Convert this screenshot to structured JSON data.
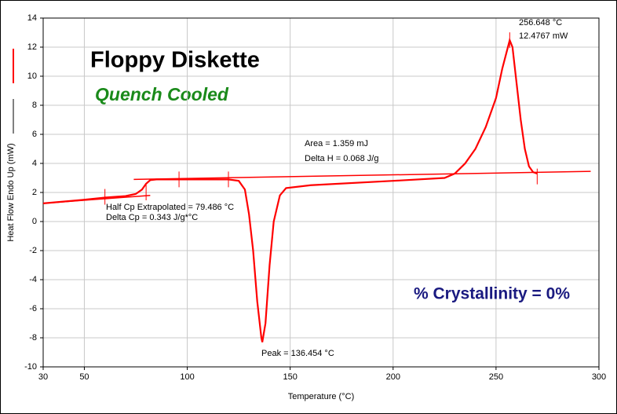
{
  "chart_data": {
    "type": "line",
    "title": "Floppy Diskette",
    "subtitle": "Quench Cooled",
    "xlabel": "Temperature (°C)",
    "ylabel": "Heat Flow Endo Up (mW)",
    "xlim": [
      30,
      300
    ],
    "ylim": [
      -10,
      14
    ],
    "xticks": [
      30,
      50,
      100,
      150,
      200,
      250,
      300
    ],
    "yticks": [
      -10,
      -8,
      -6,
      -4,
      -2,
      0,
      2,
      4,
      6,
      8,
      10,
      12,
      14
    ],
    "grid": true,
    "series": [
      {
        "color": "#ff0000",
        "x": [
          30,
          50,
          60,
          70,
          75,
          78,
          80,
          82,
          85,
          100,
          120,
          125,
          128,
          130,
          132,
          134,
          136,
          136.454,
          138,
          140,
          142,
          145,
          148,
          160,
          200,
          225,
          230,
          235,
          240,
          245,
          250,
          253,
          256.648,
          258,
          260,
          262,
          264,
          266,
          268,
          270
        ],
        "values": [
          1.25,
          1.5,
          1.65,
          1.75,
          1.9,
          2.2,
          2.6,
          2.85,
          2.9,
          2.9,
          2.9,
          2.8,
          2.2,
          0.5,
          -2,
          -5.5,
          -8.0,
          -8.3,
          -7,
          -3,
          0,
          1.8,
          2.3,
          2.5,
          2.8,
          3.0,
          3.3,
          4.0,
          5.0,
          6.5,
          8.5,
          10.5,
          12.4767,
          12.0,
          9.5,
          7,
          5,
          3.8,
          3.4,
          3.3
        ]
      },
      {
        "color": "#ff0000",
        "x": [
          74,
          296
        ],
        "values": [
          2.9,
          3.45
        ]
      },
      {
        "color": "#ff0000",
        "x": [
          30,
          82
        ],
        "values": [
          1.25,
          1.8
        ]
      }
    ],
    "markers": {
      "x": [
        60,
        80,
        96,
        120,
        256.648,
        270
      ],
      "values": [
        1.7,
        2.0,
        2.9,
        2.9,
        12.4767,
        3.1
      ]
    },
    "annotations": [
      "256.648 °C",
      "12.4767 mW",
      "Area = 1.359 mJ",
      "Delta H = 0.068 J/g",
      "Half Cp Extrapolated = 79.486 °C",
      "Delta Cp = 0.343 J/g*°C",
      "Peak = 136.454 °C",
      "% Crystallinity = 0%"
    ]
  }
}
